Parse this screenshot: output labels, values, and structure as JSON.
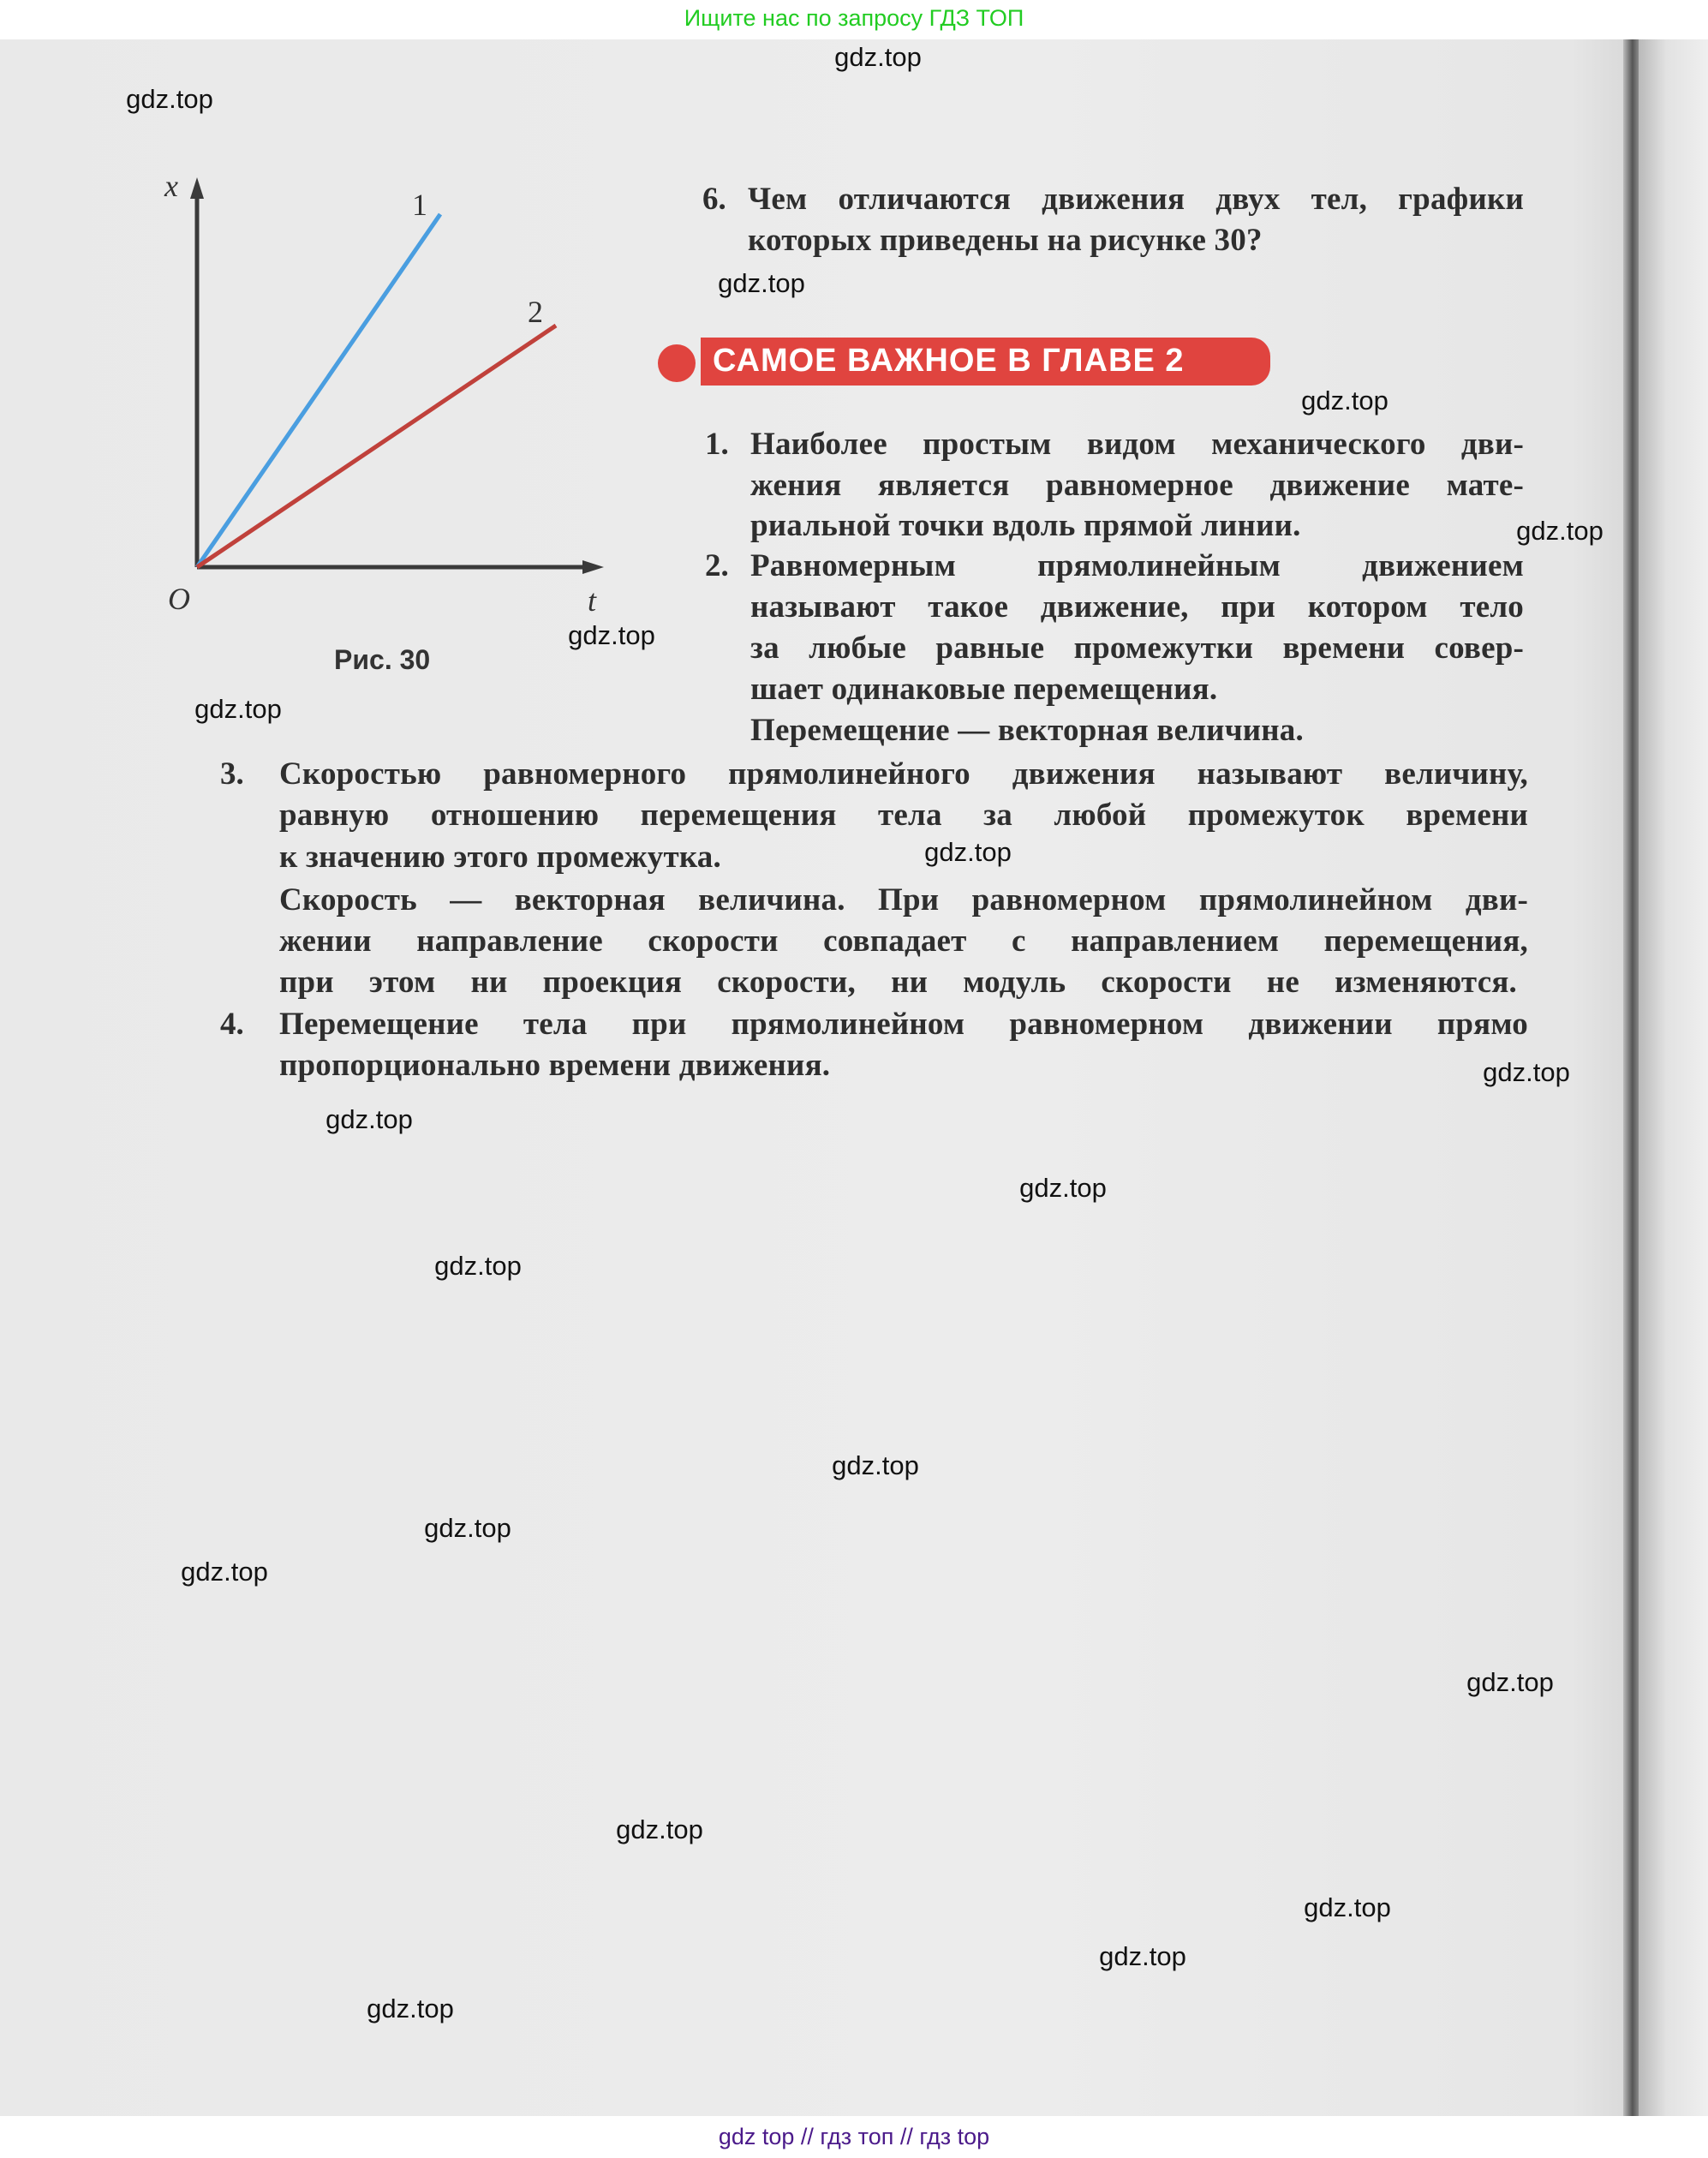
{
  "top_banner": "Ищите нас по запросу ГДЗ ТОП",
  "footer": "gdz top  //  гдз топ  //  гдз top",
  "watermark": "gdz.top",
  "figure": {
    "caption": "Рис. 30",
    "y_axis_label": "x",
    "x_axis_label": "t",
    "origin_label": "O",
    "line_labels": [
      "1",
      "2"
    ],
    "line_colors": [
      "#4a9ee0",
      "#c0413b"
    ]
  },
  "question6": {
    "number": "6.",
    "lines": [
      "Чем отличаются движения двух тел, графики",
      "которых приведены на рисунке 30?"
    ]
  },
  "section_title": "САМОЕ ВАЖНОЕ В ГЛАВЕ 2",
  "points": [
    {
      "number": "1.",
      "lines": [
        "Наиболее простым видом механического дви-",
        "жения является равномерное движение мате-",
        "риальной точки вдоль прямой линии."
      ]
    },
    {
      "number": "2.",
      "lines": [
        "Равномерным прямолинейным движением",
        "называют такое движение, при котором тело",
        "за любые равные промежутки времени совер-",
        "шает одинаковые перемещения.",
        "Перемещение — векторная величина."
      ]
    },
    {
      "number": "3.",
      "lines": [
        "Скоростью равномерного прямолинейного движения называют величину,",
        "равную отношению перемещения тела за любой промежуток времени",
        "к значению этого промежутка.",
        "Скорость — векторная величина. При равномерном прямолинейном дви-",
        "жении направление скорости совпадает с направлением перемещения,",
        "при этом ни проекция скорости, ни модуль скорости не изменяются."
      ]
    },
    {
      "number": "4.",
      "lines": [
        "Перемещение тела при прямолинейном равномерном движении прямо",
        "пропорционально времени движения."
      ]
    }
  ]
}
